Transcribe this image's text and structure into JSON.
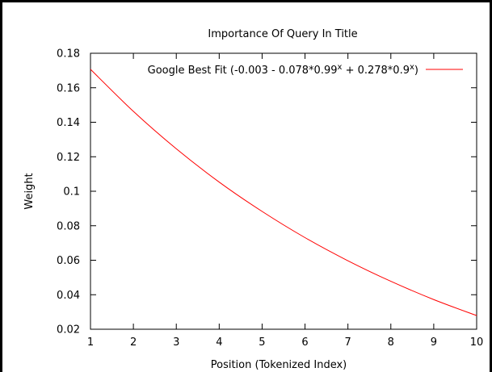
{
  "chart_data": {
    "type": "line",
    "title": "Importance Of Query In Title",
    "xlabel": "Position (Tokenized Index)",
    "ylabel": "Weight",
    "xlim": [
      1,
      10
    ],
    "ylim": [
      0.02,
      0.18
    ],
    "xticks": [
      1,
      2,
      3,
      4,
      5,
      6,
      7,
      8,
      9,
      10
    ],
    "yticks": [
      0.02,
      0.04,
      0.06,
      0.08,
      0.1,
      0.12,
      0.14,
      0.16,
      0.18
    ],
    "ytick_labels": [
      "0.02",
      "0.04",
      "0.06",
      "0.08",
      "0.1",
      "0.12",
      "0.14",
      "0.16",
      "0.18"
    ],
    "grid": false,
    "legend_position": "top-right",
    "legend": {
      "prefix": "Google Best Fit (-0.003 - 0.078*0.99",
      "sup1": "x",
      "middle": " + 0.278*0.9",
      "sup2": "x",
      "suffix": ")"
    },
    "series": [
      {
        "color": "#ff0000",
        "x": [
          1,
          2,
          3,
          4,
          5,
          6,
          7,
          8,
          9,
          10
        ],
        "y": [
          0.1707,
          0.1463,
          0.1246,
          0.1053,
          0.0883,
          0.0731,
          0.0597,
          0.0478,
          0.0372,
          0.0279
        ]
      }
    ]
  }
}
